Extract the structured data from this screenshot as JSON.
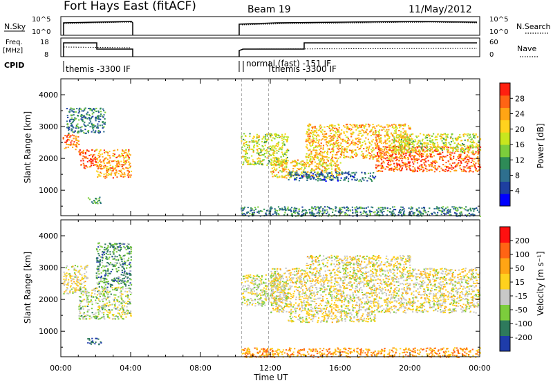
{
  "header": {
    "station": "Fort Hays East (fitACF)",
    "beam": "Beam 19",
    "date": "11/May/2012"
  },
  "status_panels": {
    "nsky": {
      "label": "N.Sky",
      "left_ticks": [
        "10^5",
        "10^0"
      ],
      "right_label": "N.Search",
      "right_ticks": [
        "10^5",
        "10^0"
      ]
    },
    "freq": {
      "label_line1": "Freq.",
      "label_line2": "[MHz]",
      "left_ticks": [
        "18",
        "8"
      ],
      "right_label": "Nave",
      "right_ticks": [
        "60",
        "0"
      ]
    },
    "cpid": {
      "label": "CPID",
      "programs": [
        {
          "name": "themis -3300 IF",
          "start_hour": 0,
          "end_hour": 4
        },
        {
          "name": "normal (fast) -151 IF",
          "start_hour": 10.3,
          "end_hour": 10.8
        },
        {
          "name": "themis -3300 IF",
          "start_hour": 11.9,
          "end_hour": 24
        }
      ]
    }
  },
  "chart_data": [
    {
      "type": "heatmap",
      "parameter": "power",
      "ylabel": "Slant Range [km]",
      "ylim": [
        200,
        4500
      ],
      "yticks": [
        1000,
        2000,
        3000,
        4000
      ],
      "colorbar_label": "Power [dB]",
      "colorbar_ticks": [
        "28",
        "24",
        "20",
        "16",
        "12",
        "8",
        "4"
      ],
      "colorscale": [
        "#0000ff",
        "#1e3fa0",
        "#2e6f8e",
        "#2e8b57",
        "#7ccd3c",
        "#c8e61e",
        "#ffd21e",
        "#ffa514",
        "#ff6414",
        "#ff2010"
      ],
      "bands": [
        {
          "start_hour": 0.1,
          "end_hour": 1.0,
          "range_low": 2300,
          "range_high": 2800,
          "level": 0.8
        },
        {
          "start_hour": 1.0,
          "end_hour": 2.0,
          "range_low": 1700,
          "range_high": 2300,
          "level": 0.9
        },
        {
          "start_hour": 2.0,
          "end_hour": 4.0,
          "range_low": 1400,
          "range_high": 2300,
          "level": 0.75
        },
        {
          "start_hour": 0.3,
          "end_hour": 2.5,
          "range_low": 2800,
          "range_high": 3600,
          "level": 0.3
        },
        {
          "start_hour": 1.5,
          "end_hour": 2.3,
          "range_low": 600,
          "range_high": 800,
          "level": 0.35
        },
        {
          "start_hour": 10.3,
          "end_hour": 13.0,
          "range_low": 1800,
          "range_high": 2800,
          "level": 0.55
        },
        {
          "start_hour": 12.0,
          "end_hour": 16.0,
          "range_low": 1400,
          "range_high": 2000,
          "level": 0.65
        },
        {
          "start_hour": 14.0,
          "end_hour": 20.0,
          "range_low": 2000,
          "range_high": 3100,
          "level": 0.7
        },
        {
          "start_hour": 13.0,
          "end_hour": 18.0,
          "range_low": 1300,
          "range_high": 1600,
          "level": 0.25
        },
        {
          "start_hour": 18.0,
          "end_hour": 24.0,
          "range_low": 1600,
          "range_high": 2400,
          "level": 0.85
        },
        {
          "start_hour": 19.0,
          "end_hour": 24.0,
          "range_low": 2200,
          "range_high": 2800,
          "level": 0.55
        },
        {
          "start_hour": 10.3,
          "end_hour": 24.0,
          "range_low": 200,
          "range_high": 500,
          "level": 0.3
        }
      ]
    },
    {
      "type": "heatmap",
      "parameter": "velocity",
      "ylabel": "Slant Range [km]",
      "ylim": [
        200,
        4500
      ],
      "yticks": [
        1000,
        2000,
        3000,
        4000
      ],
      "xlabel": "Time UT",
      "xlim": [
        0,
        24
      ],
      "xticks": [
        "00:00",
        "04:00",
        "08:00",
        "12:00",
        "16:00",
        "20:00",
        "00:00"
      ],
      "colorbar_label": "Velocity [m s⁻¹]",
      "colorbar_ticks": [
        "200",
        "100",
        "50",
        "15",
        "-15",
        "-50",
        "-100",
        "-200"
      ],
      "colorscale": [
        "#1e3caa",
        "#2e7a5c",
        "#7ccd3c",
        "#c8c8c8",
        "#ffd21e",
        "#ffa514",
        "#ff6414",
        "#ff1010"
      ],
      "bands": [
        {
          "start_hour": 0.1,
          "end_hour": 1.5,
          "range_low": 2200,
          "range_high": 3100,
          "level": 0.5
        },
        {
          "start_hour": 1.0,
          "end_hour": 4.0,
          "range_low": 1400,
          "range_high": 2400,
          "level": 0.4
        },
        {
          "start_hour": 2.0,
          "end_hour": 4.0,
          "range_low": 2400,
          "range_high": 3800,
          "level": 0.25
        },
        {
          "start_hour": 1.5,
          "end_hour": 2.3,
          "range_low": 600,
          "range_high": 800,
          "level": 0.05
        },
        {
          "start_hour": 10.3,
          "end_hour": 13.0,
          "range_low": 1800,
          "range_high": 2800,
          "level": 0.45
        },
        {
          "start_hour": 12.0,
          "end_hour": 24.0,
          "range_low": 1600,
          "range_high": 3000,
          "level": 0.5
        },
        {
          "start_hour": 14.0,
          "end_hour": 20.0,
          "range_low": 3000,
          "range_high": 3400,
          "level": 0.5
        },
        {
          "start_hour": 13.0,
          "end_hour": 18.0,
          "range_low": 1300,
          "range_high": 1600,
          "level": 0.5
        },
        {
          "start_hour": 10.3,
          "end_hour": 24.0,
          "range_low": 200,
          "range_high": 500,
          "level": 0.7
        }
      ]
    }
  ]
}
